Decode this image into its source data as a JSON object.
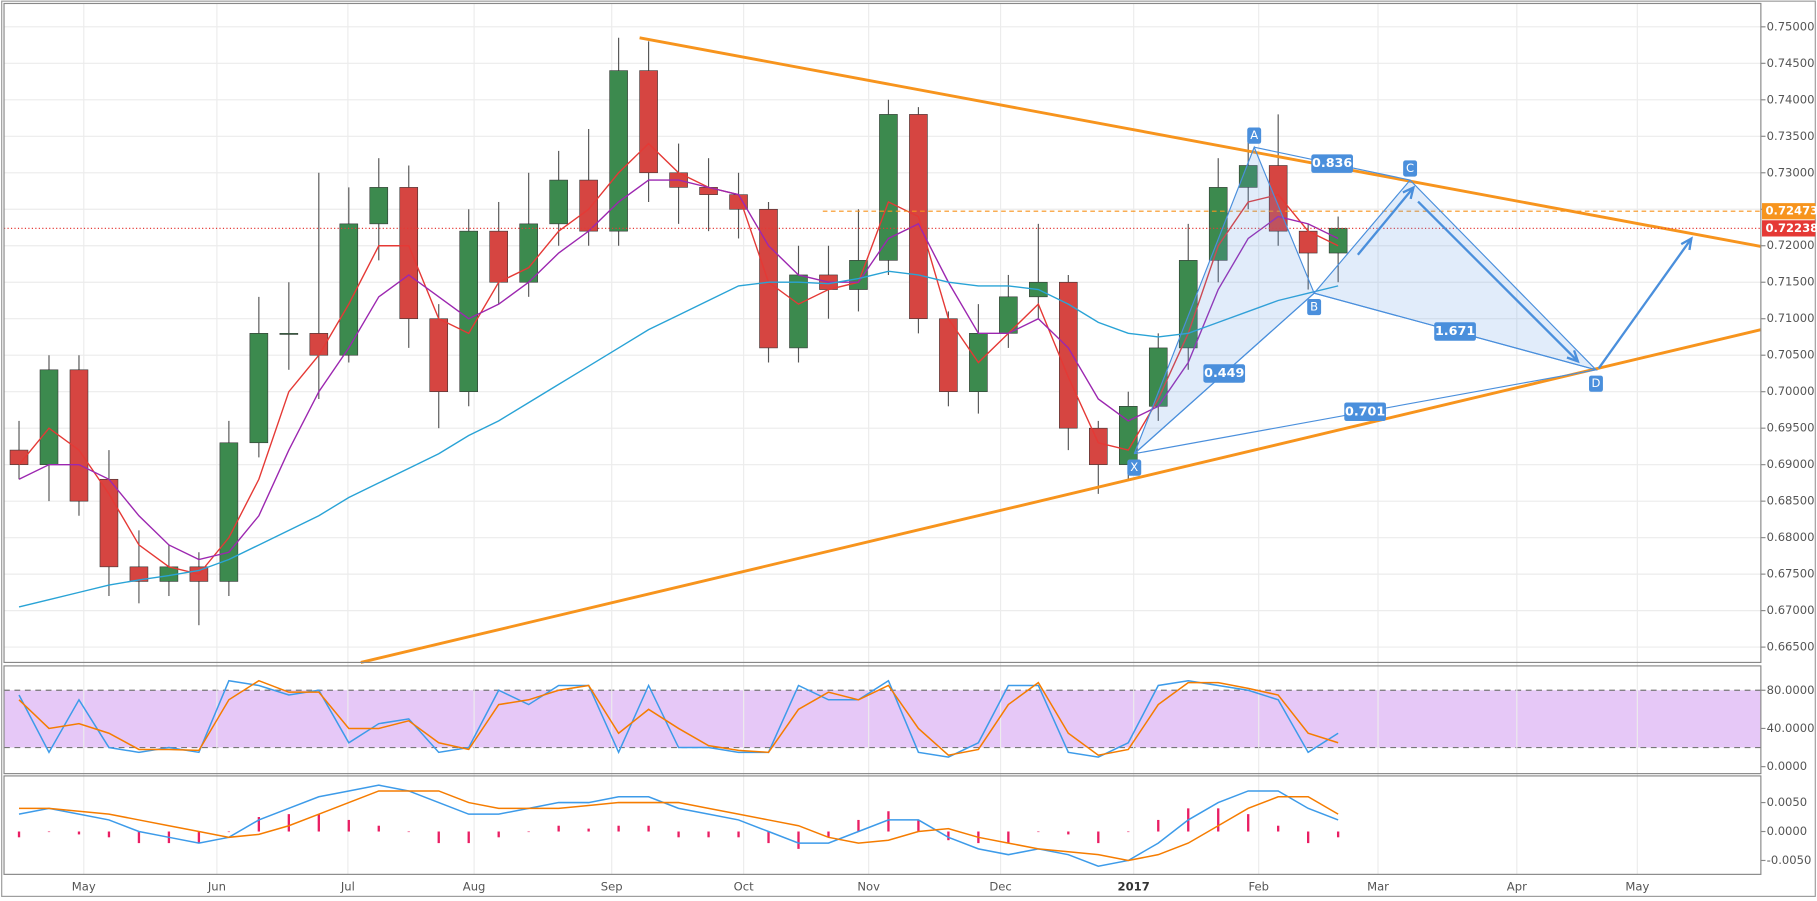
{
  "chart_data": [
    {
      "type": "candlestick",
      "xlim": [
        -0.5,
        58.1
      ],
      "ylim": [
        0.6629,
        0.7532
      ],
      "yticks": [
        {
          "value": 0.665,
          "label": "0.66500"
        },
        {
          "value": 0.67,
          "label": "0.67000"
        },
        {
          "value": 0.675,
          "label": "0.67500"
        },
        {
          "value": 0.68,
          "label": "0.68000"
        },
        {
          "value": 0.685,
          "label": "0.68500"
        },
        {
          "value": 0.69,
          "label": "0.69000"
        },
        {
          "value": 0.695,
          "label": "0.69500"
        },
        {
          "value": 0.7,
          "label": "0.70000"
        },
        {
          "value": 0.705,
          "label": "0.70500"
        },
        {
          "value": 0.71,
          "label": "0.71000"
        },
        {
          "value": 0.715,
          "label": "0.71500"
        },
        {
          "value": 0.72,
          "label": "0.72000"
        },
        {
          "value": 0.725,
          "label": "0.72500"
        },
        {
          "value": 0.73,
          "label": "0.73000"
        },
        {
          "value": 0.735,
          "label": "0.73500"
        },
        {
          "value": 0.74,
          "label": "0.74000"
        },
        {
          "value": 0.745,
          "label": "0.74500"
        },
        {
          "value": 0.75,
          "label": "0.75000"
        }
      ],
      "grid": true,
      "up_color": "#3c8a4e",
      "down_color": "#d64541",
      "open": [
        0.692,
        0.69,
        0.703,
        0.688,
        0.676,
        0.674,
        0.676,
        0.674,
        0.693,
        0.708,
        0.708,
        0.705,
        0.723,
        0.728,
        0.71,
        0.7,
        0.722,
        0.715,
        0.723,
        0.729,
        0.722,
        0.744,
        0.73,
        0.728,
        0.727,
        0.725,
        0.706,
        0.716,
        0.714,
        0.718,
        0.738,
        0.71,
        0.7,
        0.708,
        0.713,
        0.715,
        0.695,
        0.69,
        0.698,
        0.706,
        0.718,
        0.728,
        0.731,
        0.722,
        0.719
      ],
      "high": [
        0.696,
        0.705,
        0.705,
        0.692,
        0.681,
        0.679,
        0.678,
        0.696,
        0.713,
        0.715,
        0.73,
        0.728,
        0.732,
        0.731,
        0.712,
        0.725,
        0.726,
        0.73,
        0.733,
        0.736,
        0.7485,
        0.748,
        0.734,
        0.732,
        0.73,
        0.726,
        0.72,
        0.72,
        0.725,
        0.74,
        0.739,
        0.711,
        0.712,
        0.716,
        0.723,
        0.716,
        0.696,
        0.7,
        0.708,
        0.723,
        0.732,
        0.735,
        0.738,
        0.723,
        0.724
      ],
      "low": [
        0.688,
        0.685,
        0.683,
        0.672,
        0.671,
        0.672,
        0.668,
        0.672,
        0.691,
        0.703,
        0.699,
        0.704,
        0.718,
        0.706,
        0.695,
        0.698,
        0.712,
        0.713,
        0.72,
        0.72,
        0.72,
        0.726,
        0.723,
        0.722,
        0.721,
        0.704,
        0.704,
        0.71,
        0.711,
        0.716,
        0.708,
        0.698,
        0.697,
        0.706,
        0.71,
        0.692,
        0.686,
        0.688,
        0.696,
        0.703,
        0.715,
        0.725,
        0.72,
        0.714,
        0.715
      ],
      "close": [
        0.69,
        0.703,
        0.685,
        0.676,
        0.674,
        0.676,
        0.674,
        0.693,
        0.708,
        0.708,
        0.705,
        0.723,
        0.728,
        0.71,
        0.7,
        0.722,
        0.715,
        0.723,
        0.729,
        0.722,
        0.744,
        0.73,
        0.728,
        0.727,
        0.725,
        0.706,
        0.716,
        0.714,
        0.718,
        0.738,
        0.71,
        0.7,
        0.708,
        0.713,
        0.715,
        0.695,
        0.69,
        0.698,
        0.706,
        0.718,
        0.728,
        0.731,
        0.722,
        0.719,
        0.7224
      ],
      "series": [
        {
          "color": "#e53935",
          "values": [
            0.69,
            0.695,
            0.692,
            0.686,
            0.679,
            0.676,
            0.675,
            0.68,
            0.688,
            0.7,
            0.705,
            0.712,
            0.72,
            0.72,
            0.71,
            0.708,
            0.715,
            0.717,
            0.722,
            0.725,
            0.73,
            0.734,
            0.73,
            0.728,
            0.727,
            0.715,
            0.712,
            0.714,
            0.715,
            0.726,
            0.724,
            0.71,
            0.704,
            0.708,
            0.712,
            0.702,
            0.693,
            0.692,
            0.699,
            0.708,
            0.72,
            0.726,
            0.727,
            0.722,
            0.72
          ]
        },
        {
          "color": "#9c27b0",
          "values": [
            0.688,
            0.69,
            0.69,
            0.688,
            0.683,
            0.679,
            0.677,
            0.678,
            0.683,
            0.692,
            0.7,
            0.706,
            0.713,
            0.716,
            0.713,
            0.71,
            0.712,
            0.715,
            0.719,
            0.722,
            0.726,
            0.729,
            0.729,
            0.728,
            0.727,
            0.72,
            0.716,
            0.715,
            0.715,
            0.721,
            0.723,
            0.715,
            0.708,
            0.708,
            0.71,
            0.706,
            0.699,
            0.696,
            0.698,
            0.704,
            0.714,
            0.721,
            0.724,
            0.723,
            0.721
          ]
        },
        {
          "color": "#29a3d6",
          "values": [
            0.6705,
            0.6715,
            0.6725,
            0.6735,
            0.6742,
            0.6748,
            0.6755,
            0.677,
            0.679,
            0.681,
            0.683,
            0.6855,
            0.6875,
            0.6895,
            0.6915,
            0.694,
            0.696,
            0.6985,
            0.701,
            0.7035,
            0.706,
            0.7085,
            0.7105,
            0.7125,
            0.7145,
            0.715,
            0.715,
            0.7148,
            0.7155,
            0.7165,
            0.716,
            0.715,
            0.7145,
            0.7145,
            0.714,
            0.712,
            0.7095,
            0.708,
            0.7075,
            0.708,
            0.7095,
            0.711,
            0.7125,
            0.7135,
            0.7145
          ]
        }
      ],
      "trendlines": [
        {
          "color": "#f7941d",
          "points": [
            [
              20.7,
              0.7485
            ],
            [
              58.1,
              0.7199
            ]
          ]
        },
        {
          "color": "#f7941d",
          "points": [
            [
              11.4,
              0.6629
            ],
            [
              58.1,
              0.7085
            ]
          ]
        }
      ],
      "price_lines": [
        {
          "value": 0.72473,
          "color": "#f7941d"
        },
        {
          "value": 0.72238,
          "color": "#e53935"
        }
      ],
      "pattern": {
        "color": "#4a8fdc",
        "points": [
          {
            "label": "X",
            "x": 37.2,
            "price": 0.6915
          },
          {
            "label": "A",
            "x": 41.2,
            "price": 0.7335
          },
          {
            "label": "B",
            "x": 43.2,
            "price": 0.7135
          },
          {
            "label": "C",
            "x": 46.4,
            "price": 0.729
          },
          {
            "label": "D",
            "x": 52.6,
            "price": 0.703
          }
        ],
        "ratios": [
          0.836,
          1.671,
          0.449,
          0.701
        ]
      }
    },
    {
      "type": "line",
      "xlim": [
        -0.5,
        58.1
      ],
      "ylim": [
        -7.3,
        105.5
      ],
      "yticks": [
        {
          "value": 0,
          "label": "0.0000"
        },
        {
          "value": 40,
          "label": "40.0000"
        },
        {
          "value": 80,
          "label": "80.0000"
        }
      ],
      "bands": [
        20,
        80
      ],
      "band_color": "#e6c8f7",
      "series": [
        {
          "color": "#3d9be9",
          "values": [
            75,
            15,
            70,
            20,
            15,
            20,
            15,
            90,
            85,
            75,
            80,
            25,
            45,
            50,
            15,
            20,
            80,
            65,
            85,
            85,
            15,
            85,
            20,
            20,
            15,
            15,
            85,
            70,
            70,
            90,
            15,
            10,
            25,
            85,
            85,
            15,
            10,
            25,
            85,
            90,
            85,
            80,
            70,
            15,
            35
          ]
        },
        {
          "color": "#f57c00",
          "values": [
            70,
            40,
            45,
            35,
            18,
            18,
            17,
            70,
            90,
            78,
            78,
            40,
            40,
            48,
            25,
            18,
            65,
            70,
            80,
            85,
            35,
            60,
            40,
            22,
            17,
            15,
            60,
            78,
            70,
            85,
            40,
            12,
            18,
            65,
            88,
            35,
            12,
            18,
            65,
            88,
            88,
            82,
            75,
            35,
            25
          ]
        }
      ]
    },
    {
      "type": "line",
      "xlim": [
        -0.5,
        58.1
      ],
      "ylim": [
        -0.0074,
        0.0096
      ],
      "yticks": [
        {
          "value": -0.005,
          "label": "-0.0050"
        },
        {
          "value": 0,
          "label": "0.0000"
        },
        {
          "value": 0.005,
          "label": "0.0050"
        }
      ],
      "histogram": {
        "color": "#e91e63",
        "values": [
          -0.001,
          0,
          -0.0005,
          -0.001,
          -0.002,
          -0.002,
          -0.002,
          0,
          0.0025,
          0.003,
          0.003,
          0.002,
          0.001,
          0,
          -0.002,
          -0.002,
          -0.001,
          0,
          0.001,
          0.0005,
          0.001,
          0.001,
          -0.001,
          -0.001,
          -0.001,
          -0.002,
          -0.003,
          -0.001,
          0.002,
          0.0035,
          0.002,
          -0.0015,
          -0.002,
          -0.002,
          0,
          -0.0005,
          -0.002,
          0,
          0.002,
          0.004,
          0.004,
          0.003,
          0.001,
          -0.002,
          -0.001
        ]
      },
      "series": [
        {
          "color": "#3d9be9",
          "values": [
            0.003,
            0.004,
            0.003,
            0.002,
            0,
            -0.001,
            -0.002,
            -0.001,
            0.002,
            0.004,
            0.006,
            0.007,
            0.008,
            0.007,
            0.005,
            0.003,
            0.003,
            0.004,
            0.005,
            0.005,
            0.006,
            0.006,
            0.004,
            0.003,
            0.002,
            0,
            -0.002,
            -0.002,
            0,
            0.002,
            0.002,
            -0.001,
            -0.003,
            -0.004,
            -0.003,
            -0.004,
            -0.006,
            -0.005,
            -0.002,
            0.002,
            0.005,
            0.007,
            0.007,
            0.004,
            0.002
          ]
        },
        {
          "color": "#f57c00",
          "values": [
            0.004,
            0.004,
            0.0035,
            0.003,
            0.002,
            0.001,
            0,
            -0.001,
            -0.0005,
            0.001,
            0.003,
            0.005,
            0.007,
            0.007,
            0.007,
            0.005,
            0.004,
            0.004,
            0.004,
            0.0045,
            0.005,
            0.005,
            0.005,
            0.004,
            0.003,
            0.002,
            0.001,
            -0.001,
            -0.002,
            -0.0015,
            0,
            0.0005,
            -0.001,
            -0.002,
            -0.003,
            -0.0035,
            -0.004,
            -0.005,
            -0.004,
            -0.002,
            0.001,
            0.004,
            0.006,
            0.006,
            0.003
          ]
        }
      ],
      "xticks": [
        {
          "value": 2.16,
          "label": "May"
        },
        {
          "value": 6.6,
          "label": "Jun"
        },
        {
          "value": 10.97,
          "label": "Jul"
        },
        {
          "value": 15.18,
          "label": "Aug"
        },
        {
          "value": 19.77,
          "label": "Sep"
        },
        {
          "value": 24.17,
          "label": "Oct"
        },
        {
          "value": 28.34,
          "label": "Nov"
        },
        {
          "value": 32.74,
          "label": "Dec"
        },
        {
          "value": 37.18,
          "label": "2017"
        },
        {
          "value": 41.35,
          "label": "Feb"
        },
        {
          "value": 45.33,
          "label": "Mar"
        },
        {
          "value": 49.96,
          "label": "Apr"
        },
        {
          "value": 53.98,
          "label": "May"
        }
      ]
    }
  ]
}
